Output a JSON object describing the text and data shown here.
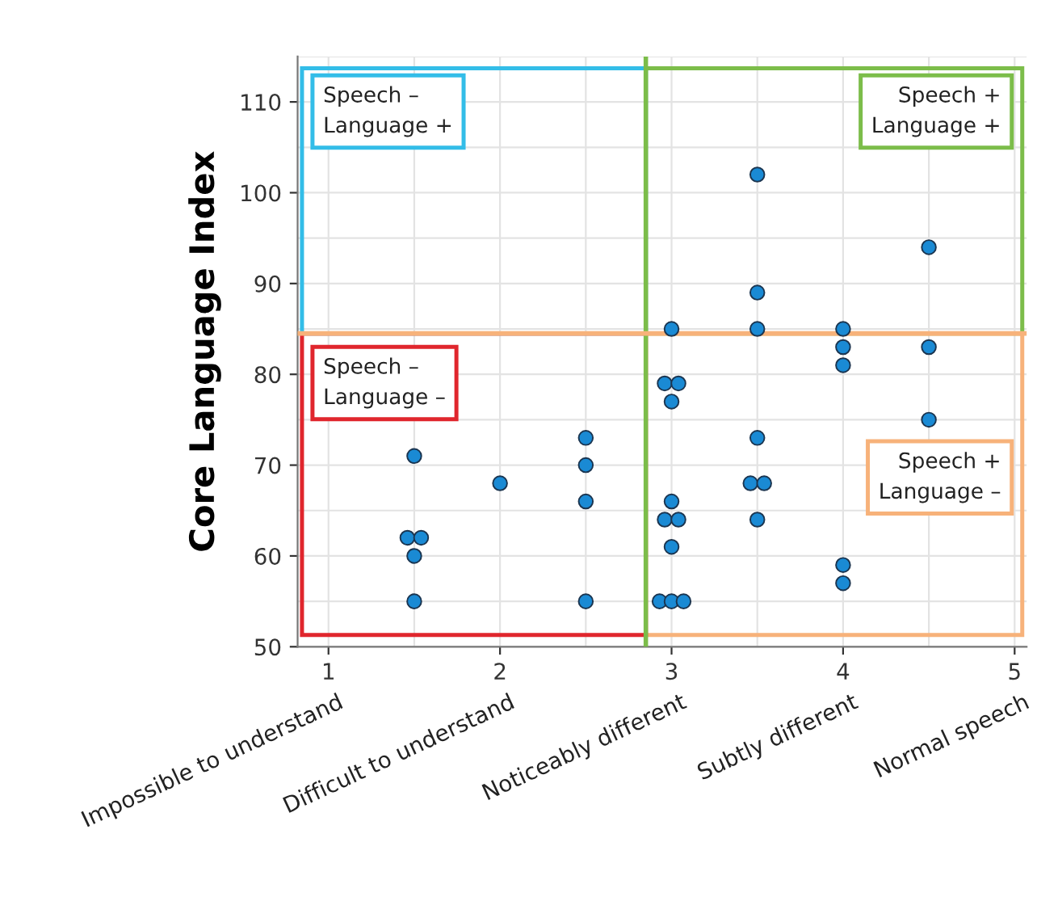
{
  "chart_data": {
    "type": "scatter",
    "ylabel": "Core Language Index",
    "series": [
      {
        "color": "#1a8ad4",
        "x": [
          1.5,
          1.46,
          1.54,
          1.5,
          1.5,
          2,
          2.5,
          2.5,
          2.5,
          2.5,
          3,
          2.96,
          3.04,
          3,
          3,
          2.96,
          3.04,
          3,
          2.93,
          3,
          3.07,
          3.5,
          3.5,
          3.5,
          3.5,
          3.46,
          3.54,
          3.5,
          4,
          4,
          4,
          4,
          4,
          4.5,
          4.5,
          4.5
        ],
        "values": [
          71,
          62,
          62,
          60,
          55,
          68,
          73,
          70,
          66,
          55,
          85,
          79,
          79,
          77,
          66,
          64,
          64,
          61,
          55,
          55,
          55,
          102,
          89,
          85,
          73,
          68,
          68,
          64,
          85,
          83,
          81,
          59,
          57,
          94,
          83,
          75
        ]
      }
    ],
    "xlim": [
      0.82,
      5.07
    ],
    "ylim": [
      50,
      115
    ],
    "xticks": [
      1,
      2,
      3,
      4,
      5
    ],
    "yticks": [
      50,
      60,
      70,
      80,
      90,
      100,
      110
    ],
    "grid": true,
    "marker": "circle",
    "ref_lines": [
      {
        "axis": "x",
        "value": 2.85,
        "color": "#7cbd4a"
      },
      {
        "axis": "y",
        "value": 84.5,
        "color": "#f7b27a"
      }
    ],
    "annotations": [
      "Impossible to understand",
      "Difficult to understand",
      "Noticeably different",
      "Subtly different",
      "Normal speech",
      "Speech –\nLanguage +",
      "Speech +\nLanguage +",
      "Speech –\nLanguage –",
      "Speech +\nLanguage –"
    ]
  }
}
